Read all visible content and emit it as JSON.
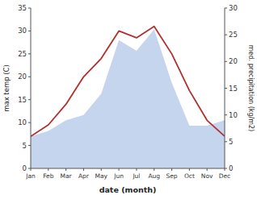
{
  "chart_data": {
    "type": "line",
    "categories": [
      "Jan",
      "Feb",
      "Mar",
      "Apr",
      "May",
      "Jun",
      "Jul",
      "Aug",
      "Sep",
      "Oct",
      "Nov",
      "Dec"
    ],
    "xlabel": "date (month)",
    "ylabel": "max temp (C)",
    "y2label": "med. precipitation (kg/m2)",
    "series": [
      {
        "type": "area",
        "axis": "y2",
        "color": "#c5d5ee",
        "values": [
          6,
          7,
          9,
          10,
          14,
          24,
          22,
          26,
          16,
          8,
          8,
          9
        ]
      },
      {
        "type": "line",
        "color": "#b03030",
        "values": [
          7,
          9.5,
          14,
          20,
          24,
          30,
          28.5,
          31,
          25,
          17,
          10.5,
          7
        ]
      }
    ],
    "ylim": [
      0,
      35
    ],
    "yticks": [
      0,
      5,
      10,
      15,
      20,
      25,
      30,
      35
    ],
    "y2lim": [
      0,
      30
    ],
    "y2ticks": [
      0,
      5,
      10,
      15,
      20,
      25,
      30
    ],
    "grid": false
  }
}
